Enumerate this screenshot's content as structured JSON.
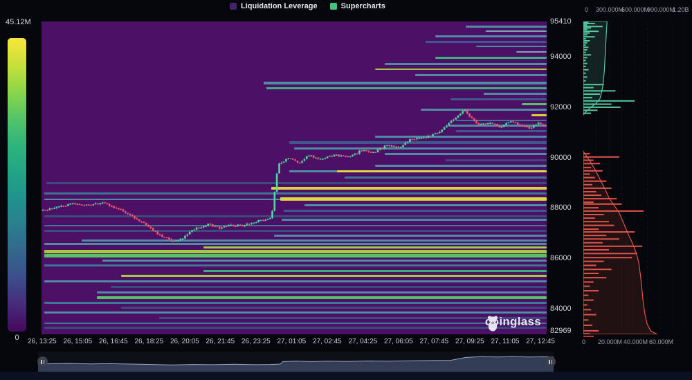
{
  "legend": {
    "items": [
      {
        "label": "Liquidation Leverage",
        "color": "#45236b"
      },
      {
        "label": "Supercharts",
        "color": "#44c17d"
      }
    ]
  },
  "colorbar": {
    "max_label": "45.12M",
    "min_label": "0",
    "gradient": [
      "#f8e63a",
      "#c8e03a",
      "#8bd646",
      "#54c568",
      "#2fb47c",
      "#21a585",
      "#1f938d",
      "#2a7f8e",
      "#33678d",
      "#3b4e8a",
      "#462a78",
      "#46085c"
    ]
  },
  "watermark": {
    "text": "coinglass"
  },
  "chart_data": [
    {
      "type": "heatmap",
      "title": "Liquidation Leverage",
      "colorbar_max": "45.12M",
      "colorbar_min": "0",
      "background": "#4c1066",
      "price_axis": {
        "min": 82969,
        "max": 95410,
        "ticks": [
          95410,
          94000,
          92000,
          90000,
          88000,
          86000,
          84000,
          82969
        ]
      },
      "time_ticks": [
        "26, 13:25",
        "26, 15:05",
        "26, 16:45",
        "26, 18:25",
        "26, 20:05",
        "26, 21:45",
        "26, 23:25",
        "27, 01:05",
        "27, 02:45",
        "27, 04:25",
        "27, 06:05",
        "27, 07:45",
        "27, 09:25",
        "27, 11:05",
        "27, 12:45"
      ],
      "palette": {
        "teal": "#4e98a8",
        "teal_dim": "#3e7f97",
        "blue": "#3d6090",
        "blue_dim": "#39507f",
        "pale": "#7ab7b4",
        "green": "#3fbc7e",
        "green_bright": "#5ad168",
        "lime": "#a8d93f",
        "yellow": "#e6e33c"
      },
      "levels": [
        [
          95217,
          0.84,
          "teal",
          3
        ],
        [
          95025,
          0.88,
          "pale",
          2
        ],
        [
          94832,
          0.78,
          "teal",
          3
        ],
        [
          94612,
          0.76,
          "blue",
          3
        ],
        [
          94419,
          0.86,
          "teal",
          2
        ],
        [
          94199,
          0.94,
          "pale",
          2
        ],
        [
          93979,
          0.78,
          "green",
          3
        ],
        [
          93731,
          0.68,
          "teal",
          3
        ],
        [
          93511,
          0.66,
          "lime",
          2
        ],
        [
          93291,
          0.74,
          "teal",
          3
        ],
        [
          92960,
          0.44,
          "teal",
          4
        ],
        [
          92768,
          0.445,
          "green",
          3
        ],
        [
          92548,
          0.875,
          "teal",
          3
        ],
        [
          92328,
          0.81,
          "blue",
          3
        ],
        [
          92135,
          0.95,
          "green_bright",
          3
        ],
        [
          91915,
          0.75,
          "teal",
          3
        ],
        [
          91695,
          0.97,
          "yellow",
          3
        ],
        [
          91475,
          0.82,
          "teal_dim",
          2
        ],
        [
          91282,
          0.805,
          "teal",
          3
        ],
        [
          91062,
          0.82,
          "blue",
          3
        ],
        [
          90842,
          0.66,
          "teal",
          3
        ],
        [
          90594,
          0.49,
          "blue",
          4
        ],
        [
          90374,
          0.5,
          "teal",
          3
        ],
        [
          90154,
          0.68,
          "teal",
          3
        ],
        [
          89906,
          0.8,
          "blue_dim",
          3
        ],
        [
          89686,
          0.66,
          "teal",
          3
        ],
        [
          89466,
          0.49,
          "teal",
          3
        ],
        [
          89466,
          0.585,
          "yellow",
          3
        ],
        [
          89218,
          0.6,
          "teal_dim",
          3
        ],
        [
          88998,
          0.01,
          "blue_dim",
          3
        ],
        [
          88778,
          0.455,
          "yellow",
          4
        ],
        [
          88558,
          0.005,
          "teal_dim",
          3
        ],
        [
          88338,
          0.005,
          "teal",
          2
        ],
        [
          88338,
          0.473,
          "yellow",
          5
        ],
        [
          88090,
          0.52,
          "teal",
          3
        ],
        [
          87870,
          0.48,
          "blue",
          3
        ],
        [
          87677,
          0.005,
          "blue_dim",
          3
        ],
        [
          87512,
          0.475,
          "teal",
          3
        ],
        [
          87292,
          0.005,
          "teal_dim",
          2
        ],
        [
          87072,
          0.005,
          "blue_dim",
          3
        ],
        [
          86879,
          0.46,
          "teal",
          3
        ],
        [
          86687,
          0.08,
          "teal",
          3
        ],
        [
          86549,
          0.005,
          "teal",
          3
        ],
        [
          86412,
          0.32,
          "lime",
          3
        ],
        [
          86247,
          0.005,
          "lime",
          5
        ],
        [
          86082,
          0.005,
          "green_bright",
          5
        ],
        [
          85889,
          0.12,
          "teal",
          3
        ],
        [
          85696,
          0.005,
          "teal_dim",
          3
        ],
        [
          85476,
          0.32,
          "green",
          3
        ],
        [
          85283,
          0.158,
          "lime",
          3
        ],
        [
          85063,
          0.005,
          "teal",
          3
        ],
        [
          84843,
          0.137,
          "blue_dim",
          3
        ],
        [
          84623,
          0.11,
          "teal",
          3
        ],
        [
          84430,
          0.11,
          "green_bright",
          4
        ],
        [
          84210,
          0.005,
          "teal_dim",
          3
        ],
        [
          84018,
          0.158,
          "blue_dim",
          3
        ],
        [
          83825,
          0.005,
          "teal",
          3
        ],
        [
          83605,
          0.233,
          "blue_dim",
          3
        ],
        [
          83412,
          0.005,
          "teal_dim",
          2
        ],
        [
          83220,
          0.005,
          "blue_dim",
          3
        ]
      ]
    },
    {
      "type": "candlestick",
      "up_color": "#53d6a2",
      "down_color": "#ef5b74",
      "candle_count": 220,
      "price_path": [
        [
          0.0,
          87900
        ],
        [
          0.03,
          88050
        ],
        [
          0.06,
          88150
        ],
        [
          0.09,
          88100
        ],
        [
          0.12,
          88200
        ],
        [
          0.14,
          88050
        ],
        [
          0.17,
          87750
        ],
        [
          0.2,
          87400
        ],
        [
          0.23,
          86950
        ],
        [
          0.26,
          86650
        ],
        [
          0.28,
          86800
        ],
        [
          0.3,
          87150
        ],
        [
          0.33,
          87350
        ],
        [
          0.35,
          87200
        ],
        [
          0.37,
          87300
        ],
        [
          0.4,
          87300
        ],
        [
          0.43,
          87500
        ],
        [
          0.455,
          87600
        ],
        [
          0.468,
          89700
        ],
        [
          0.49,
          90000
        ],
        [
          0.51,
          89800
        ],
        [
          0.53,
          90100
        ],
        [
          0.55,
          89900
        ],
        [
          0.58,
          90100
        ],
        [
          0.61,
          90000
        ],
        [
          0.635,
          90300
        ],
        [
          0.66,
          90200
        ],
        [
          0.685,
          90500
        ],
        [
          0.71,
          90400
        ],
        [
          0.73,
          90700
        ],
        [
          0.76,
          90800
        ],
        [
          0.79,
          91000
        ],
        [
          0.815,
          91500
        ],
        [
          0.84,
          91900
        ],
        [
          0.855,
          91500
        ],
        [
          0.87,
          91300
        ],
        [
          0.89,
          91400
        ],
        [
          0.91,
          91200
        ],
        [
          0.93,
          91450
        ],
        [
          0.95,
          91300
        ],
        [
          0.97,
          91150
        ],
        [
          0.985,
          91400
        ],
        [
          1.0,
          91260
        ]
      ]
    },
    {
      "type": "bar",
      "name": "ask-liquidations",
      "orientation": "horizontal",
      "color": "#57c6a3",
      "top_axis_ticks": [
        "0",
        "300.000M",
        "600.000M",
        "900.000M",
        "1.20B"
      ],
      "bottom_axis_ticks": [
        "0",
        "20.000M",
        "40.000M",
        "60.000M"
      ],
      "bars": [
        [
          95380,
          4
        ],
        [
          95330,
          9
        ],
        [
          95270,
          3
        ],
        [
          95210,
          15
        ],
        [
          95150,
          6
        ],
        [
          95090,
          3
        ],
        [
          95020,
          12
        ],
        [
          94950,
          5
        ],
        [
          94880,
          3
        ],
        [
          94800,
          9
        ],
        [
          94720,
          2
        ],
        [
          94640,
          5
        ],
        [
          94560,
          3
        ],
        [
          94470,
          2
        ],
        [
          94380,
          4
        ],
        [
          94280,
          3
        ],
        [
          94180,
          2
        ],
        [
          94080,
          6
        ],
        [
          93970,
          3
        ],
        [
          93860,
          2
        ],
        [
          93740,
          3
        ],
        [
          93620,
          2
        ],
        [
          93490,
          4
        ],
        [
          93350,
          2
        ],
        [
          93200,
          3
        ],
        [
          93050,
          2
        ],
        [
          92900,
          16
        ],
        [
          92780,
          8
        ],
        [
          92650,
          25
        ],
        [
          92520,
          13
        ],
        [
          92380,
          7
        ],
        [
          92250,
          40
        ],
        [
          92120,
          22
        ],
        [
          92000,
          29
        ],
        [
          91880,
          11
        ],
        [
          91760,
          6
        ]
      ],
      "cumulative": [
        [
          91700,
          0
        ],
        [
          91850,
          40
        ],
        [
          92000,
          90
        ],
        [
          92150,
          150
        ],
        [
          92350,
          195
        ],
        [
          92600,
          215
        ],
        [
          92900,
          230
        ],
        [
          93400,
          245
        ],
        [
          94200,
          258
        ],
        [
          94900,
          268
        ],
        [
          95410,
          278
        ]
      ]
    },
    {
      "type": "bar",
      "name": "bid-liquidations",
      "orientation": "horizontal",
      "color": "#e0534d",
      "bars": [
        [
          90150,
          5
        ],
        [
          90020,
          28
        ],
        [
          89890,
          8
        ],
        [
          89760,
          13
        ],
        [
          89600,
          6
        ],
        [
          89470,
          15
        ],
        [
          89340,
          5
        ],
        [
          89200,
          9
        ],
        [
          89060,
          18
        ],
        [
          88920,
          7
        ],
        [
          88780,
          22
        ],
        [
          88640,
          10
        ],
        [
          88500,
          14
        ],
        [
          88360,
          26
        ],
        [
          88220,
          8
        ],
        [
          88150,
          30
        ],
        [
          88000,
          12
        ],
        [
          87870,
          47
        ],
        [
          87730,
          16
        ],
        [
          87590,
          9
        ],
        [
          87450,
          20
        ],
        [
          87300,
          24
        ],
        [
          87150,
          12
        ],
        [
          87040,
          40
        ],
        [
          86900,
          18
        ],
        [
          86760,
          28
        ],
        [
          86610,
          15
        ],
        [
          86470,
          46
        ],
        [
          86330,
          20
        ],
        [
          86180,
          42
        ],
        [
          86020,
          38
        ],
        [
          85870,
          16
        ],
        [
          85710,
          10
        ],
        [
          85550,
          22
        ],
        [
          85390,
          12
        ],
        [
          85220,
          18
        ],
        [
          85050,
          8
        ],
        [
          84880,
          5
        ],
        [
          84700,
          12
        ],
        [
          84520,
          4
        ],
        [
          84330,
          8
        ],
        [
          84140,
          3
        ],
        [
          83950,
          6
        ],
        [
          83750,
          10
        ],
        [
          83540,
          4
        ],
        [
          83330,
          7
        ],
        [
          83110,
          12
        ],
        [
          82990,
          5
        ]
      ],
      "cumulative": [
        [
          90250,
          0
        ],
        [
          89900,
          70
        ],
        [
          89500,
          140
        ],
        [
          89100,
          200
        ],
        [
          88700,
          260
        ],
        [
          88400,
          300
        ],
        [
          88100,
          360
        ],
        [
          87800,
          420
        ],
        [
          87400,
          470
        ],
        [
          87000,
          520
        ],
        [
          86600,
          575
        ],
        [
          86200,
          620
        ],
        [
          85800,
          650
        ],
        [
          85300,
          670
        ],
        [
          84800,
          685
        ],
        [
          84300,
          700
        ],
        [
          83800,
          720
        ],
        [
          83400,
          745
        ],
        [
          83100,
          790
        ],
        [
          82969,
          865
        ]
      ]
    },
    {
      "type": "area",
      "name": "navigator-minimap",
      "points": [
        [
          0,
          0.4
        ],
        [
          0.03,
          0.42
        ],
        [
          0.06,
          0.43
        ],
        [
          0.1,
          0.41
        ],
        [
          0.14,
          0.42
        ],
        [
          0.18,
          0.4
        ],
        [
          0.22,
          0.38
        ],
        [
          0.26,
          0.36
        ],
        [
          0.3,
          0.38
        ],
        [
          0.34,
          0.37
        ],
        [
          0.38,
          0.39
        ],
        [
          0.42,
          0.37
        ],
        [
          0.45,
          0.38
        ],
        [
          0.47,
          0.4
        ],
        [
          0.475,
          0.52
        ],
        [
          0.5,
          0.54
        ],
        [
          0.53,
          0.52
        ],
        [
          0.56,
          0.54
        ],
        [
          0.6,
          0.53
        ],
        [
          0.64,
          0.55
        ],
        [
          0.68,
          0.54
        ],
        [
          0.72,
          0.56
        ],
        [
          0.76,
          0.57
        ],
        [
          0.8,
          0.58
        ],
        [
          0.83,
          0.72
        ],
        [
          0.86,
          0.76
        ],
        [
          0.89,
          0.74
        ],
        [
          0.92,
          0.76
        ],
        [
          0.95,
          0.74
        ],
        [
          0.98,
          0.75
        ],
        [
          1.0,
          0.74
        ]
      ]
    }
  ]
}
